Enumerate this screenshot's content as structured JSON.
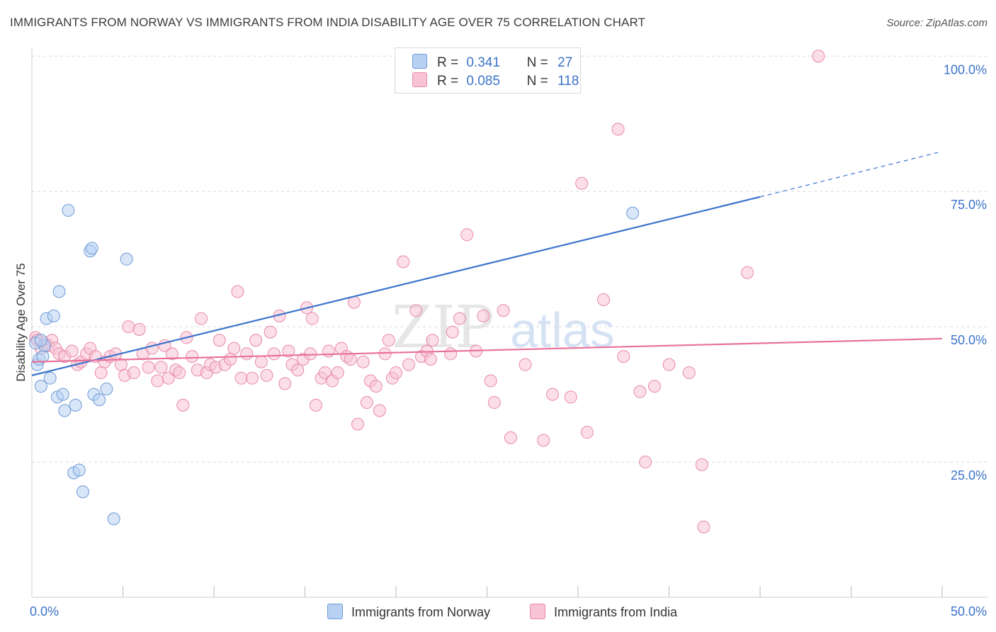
{
  "header": {
    "title": "IMMIGRANTS FROM NORWAY VS IMMIGRANTS FROM INDIA DISABILITY AGE OVER 75 CORRELATION CHART",
    "source": "Source: ZipAtlas.com"
  },
  "watermark": {
    "zip": "ZIP",
    "atlas": "atlas"
  },
  "legend": {
    "r_label": "R =",
    "n_label": "N =",
    "norway": {
      "r": "0.341",
      "n": "27"
    },
    "india": {
      "r": "0.085",
      "n": "118"
    }
  },
  "colors": {
    "norway_fill": "#b8d1f2",
    "norway_stroke": "#6e9ad6",
    "norway_line": "#3a74cc",
    "india_fill": "#f8c3d4",
    "india_stroke": "#e88aa8",
    "india_line": "#e8709a",
    "grid": "#dcdcdc",
    "axis_label": "#3b73c9"
  },
  "chart_data": {
    "type": "scatter",
    "title": "IMMIGRANTS FROM NORWAY VS IMMIGRANTS FROM INDIA DISABILITY AGE OVER 75 CORRELATION CHART",
    "xlabel": "",
    "ylabel": "Disability Age Over 75",
    "xlim": [
      0,
      50
    ],
    "ylim": [
      0,
      102
    ],
    "x_tick_labels": [
      "0.0%",
      "50.0%"
    ],
    "y_ticks": [
      25,
      50,
      75,
      100
    ],
    "y_tick_labels": [
      "25.0%",
      "50.0%",
      "75.0%",
      "100.0%"
    ],
    "grid": true,
    "series": [
      {
        "name": "Immigrants from Norway",
        "points": [
          [
            0.3,
            43.0
          ],
          [
            0.4,
            44.0
          ],
          [
            0.5,
            39.0
          ],
          [
            0.6,
            44.5
          ],
          [
            0.7,
            46.5
          ],
          [
            0.8,
            51.5
          ],
          [
            1.0,
            40.5
          ],
          [
            1.2,
            52.0
          ],
          [
            1.4,
            37.0
          ],
          [
            1.5,
            56.5
          ],
          [
            1.7,
            37.5
          ],
          [
            1.8,
            34.5
          ],
          [
            2.0,
            71.5
          ],
          [
            2.3,
            23.0
          ],
          [
            2.4,
            35.5
          ],
          [
            2.6,
            23.5
          ],
          [
            2.8,
            19.5
          ],
          [
            3.2,
            64.0
          ],
          [
            3.3,
            64.5
          ],
          [
            3.4,
            37.5
          ],
          [
            3.7,
            36.5
          ],
          [
            4.1,
            38.5
          ],
          [
            4.5,
            14.5
          ],
          [
            5.2,
            62.5
          ],
          [
            33.0,
            71.0
          ],
          [
            0.2,
            47.0
          ],
          [
            0.5,
            47.5
          ]
        ],
        "trend": {
          "x_start": 0,
          "y_start": 41.0,
          "x_solid_end": 40.0,
          "y_solid_end": 74.0,
          "x_end": 50,
          "y_end": 82.2,
          "dashed_after": 40.0
        }
      },
      {
        "name": "Immigrants from India",
        "points": [
          [
            0.2,
            48.0
          ],
          [
            0.3,
            47.5
          ],
          [
            0.5,
            46.0
          ],
          [
            0.7,
            47.0
          ],
          [
            0.9,
            46.5
          ],
          [
            1.1,
            47.5
          ],
          [
            1.3,
            46.0
          ],
          [
            1.5,
            45.0
          ],
          [
            1.8,
            44.5
          ],
          [
            2.2,
            45.5
          ],
          [
            2.5,
            43.0
          ],
          [
            2.7,
            43.5
          ],
          [
            3.0,
            45.0
          ],
          [
            3.2,
            46.0
          ],
          [
            3.5,
            44.5
          ],
          [
            3.8,
            41.5
          ],
          [
            4.0,
            43.5
          ],
          [
            4.3,
            44.5
          ],
          [
            4.6,
            45.0
          ],
          [
            4.9,
            43.0
          ],
          [
            5.1,
            41.0
          ],
          [
            5.3,
            50.0
          ],
          [
            5.6,
            41.5
          ],
          [
            5.9,
            49.5
          ],
          [
            6.1,
            45.0
          ],
          [
            6.4,
            42.5
          ],
          [
            6.6,
            46.0
          ],
          [
            6.9,
            40.0
          ],
          [
            7.1,
            42.5
          ],
          [
            7.3,
            46.5
          ],
          [
            7.5,
            40.5
          ],
          [
            7.7,
            45.0
          ],
          [
            7.9,
            42.0
          ],
          [
            8.1,
            41.5
          ],
          [
            8.3,
            35.5
          ],
          [
            8.5,
            48.0
          ],
          [
            8.8,
            44.5
          ],
          [
            9.1,
            42.0
          ],
          [
            9.3,
            51.5
          ],
          [
            9.6,
            41.5
          ],
          [
            9.8,
            43.0
          ],
          [
            10.1,
            42.5
          ],
          [
            10.3,
            47.5
          ],
          [
            10.6,
            43.0
          ],
          [
            10.9,
            44.0
          ],
          [
            11.1,
            46.0
          ],
          [
            11.3,
            56.5
          ],
          [
            11.5,
            40.5
          ],
          [
            11.8,
            45.0
          ],
          [
            12.1,
            40.5
          ],
          [
            12.3,
            47.5
          ],
          [
            12.6,
            43.5
          ],
          [
            12.9,
            41.0
          ],
          [
            13.1,
            49.0
          ],
          [
            13.3,
            45.0
          ],
          [
            13.6,
            52.0
          ],
          [
            13.9,
            39.5
          ],
          [
            14.1,
            45.5
          ],
          [
            14.3,
            43.0
          ],
          [
            14.6,
            42.0
          ],
          [
            14.9,
            44.0
          ],
          [
            15.1,
            53.5
          ],
          [
            15.3,
            45.0
          ],
          [
            15.4,
            51.5
          ],
          [
            15.6,
            35.5
          ],
          [
            15.9,
            40.5
          ],
          [
            16.1,
            41.5
          ],
          [
            16.3,
            45.5
          ],
          [
            16.5,
            40.0
          ],
          [
            16.8,
            41.5
          ],
          [
            17.0,
            46.0
          ],
          [
            17.3,
            44.5
          ],
          [
            17.5,
            44.0
          ],
          [
            17.7,
            54.5
          ],
          [
            17.9,
            32.0
          ],
          [
            18.2,
            43.5
          ],
          [
            18.4,
            36.0
          ],
          [
            18.6,
            40.0
          ],
          [
            18.9,
            39.0
          ],
          [
            19.1,
            34.5
          ],
          [
            19.4,
            45.0
          ],
          [
            19.6,
            47.5
          ],
          [
            19.8,
            40.5
          ],
          [
            20.0,
            41.5
          ],
          [
            20.4,
            62.0
          ],
          [
            20.7,
            43.0
          ],
          [
            21.1,
            53.0
          ],
          [
            21.4,
            44.5
          ],
          [
            21.7,
            45.5
          ],
          [
            21.9,
            44.0
          ],
          [
            22.0,
            47.5
          ],
          [
            23.0,
            45.0
          ],
          [
            23.1,
            49.0
          ],
          [
            23.5,
            51.5
          ],
          [
            23.9,
            67.0
          ],
          [
            24.4,
            45.5
          ],
          [
            24.8,
            52.0
          ],
          [
            25.2,
            40.0
          ],
          [
            25.4,
            36.0
          ],
          [
            25.9,
            53.0
          ],
          [
            26.3,
            29.5
          ],
          [
            27.1,
            43.0
          ],
          [
            28.1,
            29.0
          ],
          [
            28.6,
            37.5
          ],
          [
            29.6,
            37.0
          ],
          [
            30.2,
            76.5
          ],
          [
            30.5,
            30.5
          ],
          [
            31.4,
            55.0
          ],
          [
            32.2,
            86.5
          ],
          [
            32.5,
            44.5
          ],
          [
            33.4,
            38.0
          ],
          [
            33.7,
            25.0
          ],
          [
            34.2,
            39.0
          ],
          [
            35.0,
            43.0
          ],
          [
            36.1,
            41.5
          ],
          [
            36.8,
            24.5
          ],
          [
            36.9,
            13.0
          ],
          [
            39.3,
            60.0
          ],
          [
            43.2,
            100.0
          ]
        ],
        "trend": {
          "x_start": 0,
          "y_start": 43.5,
          "x_end": 50,
          "y_end": 47.8
        }
      }
    ]
  },
  "bottom_legend": {
    "norway_label": "Immigrants from Norway",
    "india_label": "Immigrants from India"
  }
}
